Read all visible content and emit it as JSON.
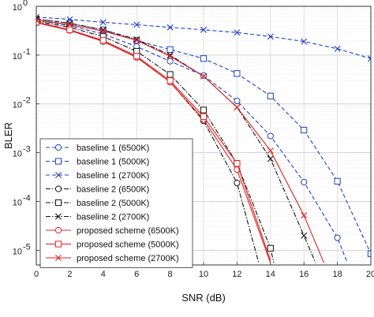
{
  "chart_data": {
    "type": "line",
    "title": "",
    "xlabel": "SNR (dB)",
    "ylabel": "BLER",
    "xlim": [
      0,
      20
    ],
    "ylim": [
      5e-06,
      1
    ],
    "yscale": "log",
    "grid": true,
    "legend_position": "lower-left",
    "x_ticks": [
      0,
      2,
      4,
      6,
      8,
      10,
      12,
      14,
      16,
      18,
      20
    ],
    "x_tick_labels": [
      "0",
      "2",
      "4",
      "6",
      "8",
      "10",
      "12",
      "14",
      "16",
      "18",
      "20"
    ],
    "y_tick_labels": [
      {
        "base": "10",
        "exp": "0",
        "value": 1
      },
      {
        "base": "10",
        "exp": "-1",
        "value": 0.1
      },
      {
        "base": "10",
        "exp": "-2",
        "value": 0.01
      },
      {
        "base": "10",
        "exp": "-3",
        "value": 0.001
      },
      {
        "base": "10",
        "exp": "-4",
        "value": 0.0001
      },
      {
        "base": "10",
        "exp": "-5",
        "value": 1e-05
      }
    ],
    "series": [
      {
        "name": "baseline 1 (6500K)",
        "color": "#2040c8",
        "dash": "dashed",
        "marker": "circle",
        "points": [
          [
            0,
            0.52
          ],
          [
            2,
            0.4
          ],
          [
            4,
            0.27
          ],
          [
            6,
            0.15
          ],
          [
            8,
            0.075
          ],
          [
            10,
            0.038
          ],
          [
            12,
            0.0115
          ],
          [
            14,
            0.0022
          ],
          [
            16,
            0.00025
          ],
          [
            18,
            1.8e-05
          ],
          [
            18.6,
            5.5e-06
          ]
        ]
      },
      {
        "name": "baseline 1 (5000K)",
        "color": "#2040c8",
        "dash": "dashed",
        "marker": "square",
        "points": [
          [
            0,
            0.55
          ],
          [
            2,
            0.45
          ],
          [
            4,
            0.33
          ],
          [
            6,
            0.2
          ],
          [
            8,
            0.13
          ],
          [
            10,
            0.085
          ],
          [
            12,
            0.042
          ],
          [
            14,
            0.0145
          ],
          [
            16,
            0.0029
          ],
          [
            18,
            0.00026
          ],
          [
            20,
            8.5e-06
          ]
        ]
      },
      {
        "name": "baseline 1 (2700K)",
        "color": "#2040c8",
        "dash": "dashed",
        "marker": "x",
        "points": [
          [
            0,
            0.6
          ],
          [
            2,
            0.54
          ],
          [
            4,
            0.47
          ],
          [
            6,
            0.42
          ],
          [
            8,
            0.37
          ],
          [
            10,
            0.33
          ],
          [
            12,
            0.29
          ],
          [
            14,
            0.24
          ],
          [
            16,
            0.19
          ],
          [
            18,
            0.135
          ],
          [
            20,
            0.085
          ]
        ]
      },
      {
        "name": "baseline 2 (6500K)",
        "color": "#111111",
        "dash": "dashdot",
        "marker": "circle",
        "points": [
          [
            0,
            0.48
          ],
          [
            2,
            0.33
          ],
          [
            4,
            0.19
          ],
          [
            6,
            0.09
          ],
          [
            8,
            0.028
          ],
          [
            10,
            0.0045
          ],
          [
            12,
            0.00024
          ],
          [
            13.3,
            5.5e-06
          ]
        ]
      },
      {
        "name": "baseline 2 (5000K)",
        "color": "#111111",
        "dash": "dashdot",
        "marker": "square",
        "points": [
          [
            0,
            0.5
          ],
          [
            2,
            0.37
          ],
          [
            4,
            0.24
          ],
          [
            6,
            0.12
          ],
          [
            8,
            0.04
          ],
          [
            10,
            0.0075
          ],
          [
            12,
            0.0006
          ],
          [
            14,
            1.1e-05
          ],
          [
            14.2,
            5.5e-06
          ]
        ]
      },
      {
        "name": "baseline 2 (2700K)",
        "color": "#111111",
        "dash": "dashdot",
        "marker": "x",
        "points": [
          [
            0,
            0.55
          ],
          [
            2,
            0.45
          ],
          [
            4,
            0.33
          ],
          [
            6,
            0.21
          ],
          [
            8,
            0.1
          ],
          [
            10,
            0.037
          ],
          [
            12,
            0.0085
          ],
          [
            14,
            0.00075
          ],
          [
            16,
            2e-05
          ],
          [
            16.7,
            5.5e-06
          ]
        ]
      },
      {
        "name": "proposed scheme (6500K)",
        "color": "#e02020",
        "dash": "solid",
        "marker": "circle",
        "points": [
          [
            0,
            0.46
          ],
          [
            2,
            0.32
          ],
          [
            4,
            0.19
          ],
          [
            6,
            0.09
          ],
          [
            8,
            0.028
          ],
          [
            10,
            0.0048
          ],
          [
            12,
            0.00045
          ],
          [
            14,
            5.5e-06
          ]
        ]
      },
      {
        "name": "proposed scheme (5000K)",
        "color": "#e02020",
        "dash": "solid",
        "marker": "square",
        "points": [
          [
            0,
            0.47
          ],
          [
            2,
            0.33
          ],
          [
            4,
            0.2
          ],
          [
            6,
            0.095
          ],
          [
            8,
            0.03
          ],
          [
            10,
            0.0055
          ],
          [
            12,
            0.0006
          ],
          [
            14,
            6.2e-06
          ]
        ]
      },
      {
        "name": "proposed scheme (2700K)",
        "color": "#e02020",
        "dash": "solid",
        "marker": "x",
        "points": [
          [
            0,
            0.52
          ],
          [
            2,
            0.42
          ],
          [
            4,
            0.31
          ],
          [
            6,
            0.2
          ],
          [
            8,
            0.095
          ],
          [
            10,
            0.037
          ],
          [
            12,
            0.0085
          ],
          [
            14,
            0.0011
          ],
          [
            16,
            5.2e-05
          ],
          [
            17.2,
            5.5e-06
          ]
        ]
      }
    ]
  }
}
